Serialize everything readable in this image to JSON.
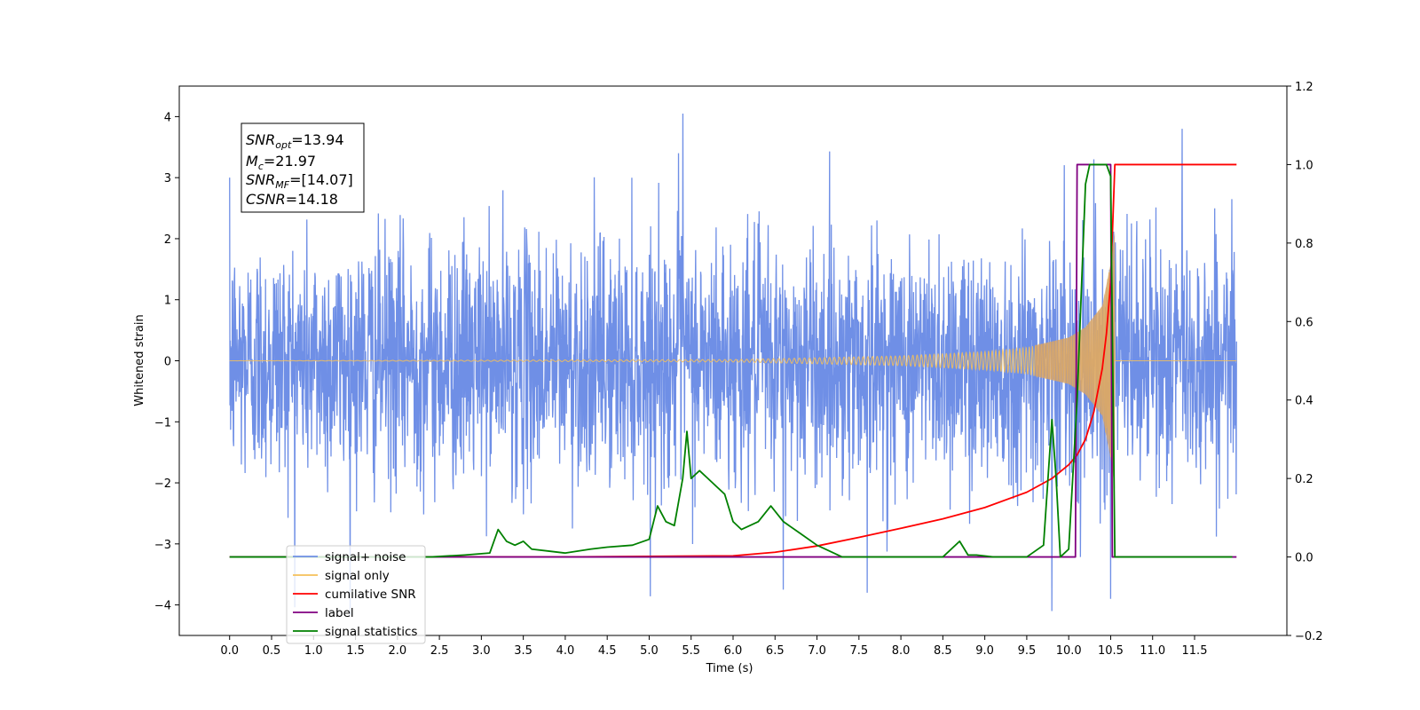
{
  "chart_data": {
    "type": "line",
    "xlabel": "Time (s)",
    "ylabel": "Whitened strain",
    "xlim": [
      -0.6,
      12.6
    ],
    "ylim_left": [
      -4.5,
      4.5
    ],
    "ylim_right": [
      -0.2,
      1.2
    ],
    "x_ticks": [
      "0.0",
      "0.5",
      "1.0",
      "1.5",
      "2.0",
      "2.5",
      "3.0",
      "3.5",
      "4.0",
      "4.5",
      "5.0",
      "5.5",
      "6.0",
      "6.5",
      "7.0",
      "7.5",
      "8.0",
      "8.5",
      "9.0",
      "9.5",
      "10.0",
      "10.5",
      "11.0",
      "11.5"
    ],
    "y_ticks_left": [
      "−4",
      "−3",
      "−2",
      "−1",
      "0",
      "1",
      "2",
      "3",
      "4"
    ],
    "y_ticks_right": [
      "−0.2",
      "0.0",
      "0.2",
      "0.4",
      "0.6",
      "0.8",
      "1.0",
      "1.2"
    ],
    "annotation": {
      "lines": [
        {
          "main": "SNR",
          "sub": "opt",
          "rest": "=13.94"
        },
        {
          "main": "M",
          "sub": "c",
          "rest": "=21.97"
        },
        {
          "main": "SNR",
          "sub": "MF",
          "rest": "=[14.07]"
        },
        {
          "main": "CSNR",
          "sub": "",
          "rest": "=14.18"
        }
      ]
    },
    "legend": {
      "position": "lower-left",
      "entries": [
        {
          "label": "signal+ noise",
          "color": "#6f8fe6"
        },
        {
          "label": "signal only",
          "color": "#f5c05a"
        },
        {
          "label": "cumilative SNR",
          "color": "#ff0000"
        },
        {
          "label": "label",
          "color": "#800080"
        },
        {
          "label": "signal statistics",
          "color": "#008000"
        }
      ]
    },
    "series": [
      {
        "name": "signal+ noise",
        "axis": "left",
        "color": "#6f8fe6",
        "description": "whitened noise, approx. N(0,1), 0.0–12.0 s",
        "notable_peaks": [
          {
            "x": 0.0,
            "y": 3.0
          },
          {
            "x": 5.4,
            "y": 4.05
          },
          {
            "x": 5.35,
            "y": 3.4
          },
          {
            "x": 10.3,
            "y": 3.3
          },
          {
            "x": 11.35,
            "y": 3.8
          },
          {
            "x": 6.6,
            "y": -3.75
          },
          {
            "x": 9.8,
            "y": -4.1
          },
          {
            "x": 10.5,
            "y": -3.9
          },
          {
            "x": 7.6,
            "y": -3.8
          }
        ]
      },
      {
        "name": "signal only",
        "axis": "left",
        "color": "#f5c05a",
        "description": "chirp, amplitude grows to ~2.1 and ends at 10.55 s",
        "envelope": {
          "x": [
            0.0,
            6.0,
            8.0,
            9.0,
            9.5,
            10.0,
            10.2,
            10.4,
            10.5,
            10.55
          ],
          "y": [
            0.0,
            0.02,
            0.08,
            0.15,
            0.22,
            0.38,
            0.55,
            0.9,
            1.6,
            2.1
          ]
        }
      },
      {
        "name": "cumilative SNR",
        "axis": "right",
        "color": "#ff0000",
        "x": [
          0.0,
          4.0,
          6.0,
          6.5,
          7.0,
          7.5,
          8.0,
          8.5,
          9.0,
          9.5,
          9.8,
          10.0,
          10.1,
          10.2,
          10.3,
          10.4,
          10.45,
          10.5,
          10.55,
          12.0
        ],
        "y": [
          0.0,
          0.0,
          0.003,
          0.012,
          0.028,
          0.05,
          0.073,
          0.097,
          0.126,
          0.165,
          0.2,
          0.235,
          0.26,
          0.3,
          0.37,
          0.48,
          0.57,
          0.7,
          1.0,
          1.0
        ]
      },
      {
        "name": "label",
        "axis": "right",
        "color": "#800080",
        "x": [
          0.0,
          10.08,
          10.1,
          10.5,
          10.52,
          12.0
        ],
        "y": [
          0.0,
          0.0,
          1.0,
          1.0,
          0.0,
          0.0
        ]
      },
      {
        "name": "signal statistics",
        "axis": "right",
        "color": "#008000",
        "x": [
          0.0,
          2.4,
          2.8,
          3.1,
          3.2,
          3.3,
          3.4,
          3.5,
          3.6,
          3.8,
          4.0,
          4.3,
          4.5,
          4.8,
          5.0,
          5.1,
          5.2,
          5.3,
          5.4,
          5.45,
          5.5,
          5.6,
          5.7,
          5.8,
          5.9,
          6.0,
          6.1,
          6.3,
          6.45,
          6.6,
          6.8,
          7.0,
          7.3,
          7.6,
          8.5,
          8.7,
          8.8,
          8.9,
          9.1,
          9.5,
          9.7,
          9.8,
          9.85,
          9.9,
          10.0,
          10.1,
          10.2,
          10.25,
          10.3,
          10.45,
          10.5,
          10.55,
          11.0,
          11.5,
          11.95
        ],
        "y": [
          0.0,
          0.0,
          0.005,
          0.01,
          0.07,
          0.04,
          0.03,
          0.04,
          0.02,
          0.015,
          0.01,
          0.02,
          0.025,
          0.03,
          0.045,
          0.13,
          0.09,
          0.08,
          0.2,
          0.32,
          0.2,
          0.22,
          0.2,
          0.18,
          0.16,
          0.09,
          0.07,
          0.09,
          0.13,
          0.09,
          0.06,
          0.03,
          0.0,
          0.0,
          0.0,
          0.04,
          0.005,
          0.005,
          0.0,
          0.0,
          0.03,
          0.35,
          0.2,
          0.0,
          0.02,
          0.4,
          0.95,
          1.0,
          1.0,
          1.0,
          0.97,
          0.0,
          0.0,
          0.0,
          0.0
        ]
      }
    ]
  }
}
